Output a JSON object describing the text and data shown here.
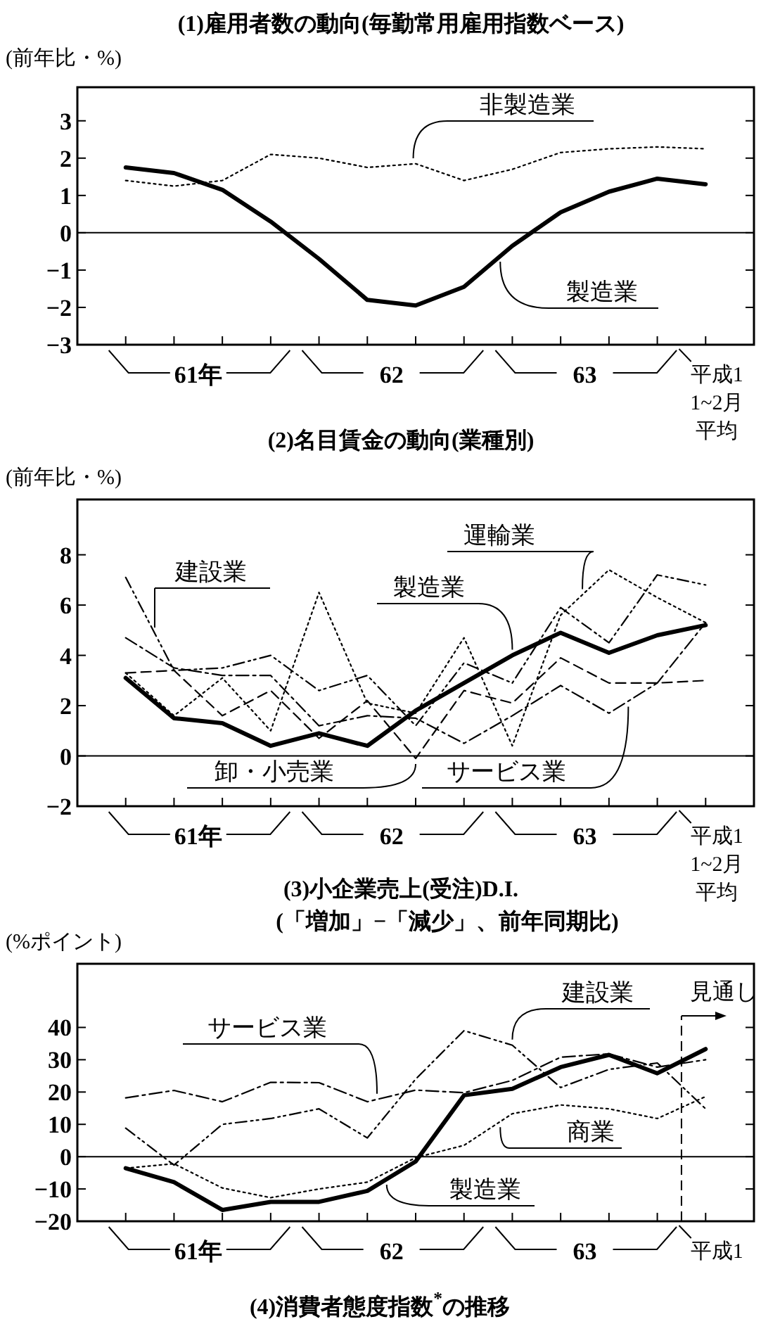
{
  "chart_data": [
    {
      "type": "line",
      "title": "(1)雇用者数の動向(毎勤常用雇用指数ベース)",
      "ylabel": "(前年比・%)",
      "categories": [
        null,
        null,
        null,
        null,
        null,
        null,
        null,
        null,
        null,
        null,
        null,
        null,
        "平成11~2月平均"
      ],
      "series": [
        {
          "name": "非製造業",
          "color": "#000000",
          "line_style": "dotted",
          "values": [
            1.4,
            1.25,
            1.4,
            2.1,
            2.0,
            1.75,
            1.85,
            1.4,
            1.7,
            2.15,
            2.25,
            2.3,
            2.25
          ]
        },
        {
          "name": "製造業",
          "color": "#000000",
          "line_style": "solid",
          "values": [
            1.75,
            1.6,
            1.15,
            0.3,
            -0.7,
            -1.8,
            -1.95,
            -1.45,
            -0.35,
            0.55,
            1.1,
            1.45,
            1.3
          ]
        }
      ],
      "ylim": [
        -3,
        3.9
      ],
      "yticks": [
        -3,
        -2,
        -1,
        0,
        1,
        2,
        3
      ],
      "ref_lines": [
        {
          "axis": "y",
          "value": 0
        }
      ],
      "annotations": [
        "61年",
        "62",
        "63"
      ]
    },
    {
      "type": "line",
      "title": "(2)名目賃金の動向(業種別)",
      "ylabel": "(前年比・%)",
      "categories": [
        null,
        null,
        null,
        null,
        null,
        null,
        null,
        null,
        null,
        null,
        null,
        null,
        "平成11~2月平均"
      ],
      "series": [
        {
          "name": "建設業",
          "color": "#000000",
          "line_style": "dashdotdot",
          "values": [
            7.1,
            3.4,
            3.5,
            4.0,
            2.6,
            3.2,
            1.2,
            3.7,
            2.9,
            5.9,
            4.5,
            7.2,
            6.8
          ]
        },
        {
          "name": "運輸業",
          "color": "#000000",
          "line_style": "dotted",
          "values": [
            3.3,
            1.6,
            3.1,
            1.0,
            6.5,
            2.1,
            1.7,
            4.7,
            0.4,
            5.6,
            7.4,
            6.3,
            5.3
          ]
        },
        {
          "name": "製造業",
          "color": "#000000",
          "line_style": "solid",
          "values": [
            3.1,
            1.5,
            1.3,
            0.4,
            0.9,
            0.4,
            1.8,
            2.9,
            4.0,
            4.9,
            4.1,
            4.8,
            5.2
          ]
        },
        {
          "name": "卸・小売業",
          "color": "#000000",
          "line_style": "dashed",
          "values": [
            3.3,
            3.4,
            1.6,
            2.6,
            0.7,
            2.2,
            -0.1,
            2.6,
            2.1,
            3.9,
            2.9,
            2.9,
            3.0
          ]
        },
        {
          "name": "サービス業",
          "color": "#000000",
          "line_style": "dashdot",
          "values": [
            4.7,
            3.5,
            3.2,
            3.2,
            1.2,
            1.6,
            1.5,
            0.5,
            1.6,
            2.8,
            1.7,
            2.9,
            5.3
          ]
        }
      ],
      "ylim": [
        -2,
        10.2
      ],
      "yticks": [
        -2,
        0,
        2,
        4,
        6,
        8
      ],
      "ref_lines": [
        {
          "axis": "y",
          "value": 0
        }
      ],
      "annotations": [
        "61年",
        "62",
        "63"
      ]
    },
    {
      "type": "line",
      "title": "(3)小企業売上(受注)D.I.",
      "subtitle": "(「増加」−「減少」、前年同期比)",
      "ylabel": "(%ポイント)",
      "categories": [
        null,
        null,
        null,
        null,
        null,
        null,
        null,
        null,
        null,
        null,
        null,
        null,
        "平成1"
      ],
      "series": [
        {
          "name": "サービス業",
          "color": "#000000",
          "line_style": "dashdot",
          "values": [
            18.2,
            20.5,
            17,
            23,
            22.9,
            17,
            20.6,
            19.8,
            23.6,
            30.8,
            31.8,
            27.7,
            30
          ]
        },
        {
          "name": "建設業",
          "color": "#000000",
          "line_style": "dashdotdot",
          "values": [
            8.8,
            -2.6,
            10,
            11.8,
            14.8,
            5.8,
            24,
            39,
            34.5,
            21.4,
            27,
            29,
            14.8
          ]
        },
        {
          "name": "商業",
          "color": "#000000",
          "line_style": "dotted",
          "values": [
            -3.6,
            -2.2,
            -9.7,
            -12.7,
            -10,
            -7.9,
            -0.3,
            3.5,
            13.3,
            16,
            14.8,
            11.8,
            18.6
          ]
        },
        {
          "name": "製造業",
          "color": "#000000",
          "line_style": "solid",
          "values": [
            -3.6,
            -7.9,
            -16.5,
            -14,
            -14,
            -10.6,
            -1.5,
            19,
            21,
            27.7,
            31.5,
            25.8,
            33.3
          ]
        }
      ],
      "ylim": [
        -20,
        59.7
      ],
      "yticks": [
        -20,
        -10,
        0,
        10,
        20,
        30,
        40
      ],
      "ref_lines": [
        {
          "axis": "y",
          "value": 0
        }
      ],
      "annotations": [
        "61年",
        "62",
        "63",
        "(4)消費者態度指数$^{*}$の推移",
        "見通し"
      ]
    }
  ]
}
